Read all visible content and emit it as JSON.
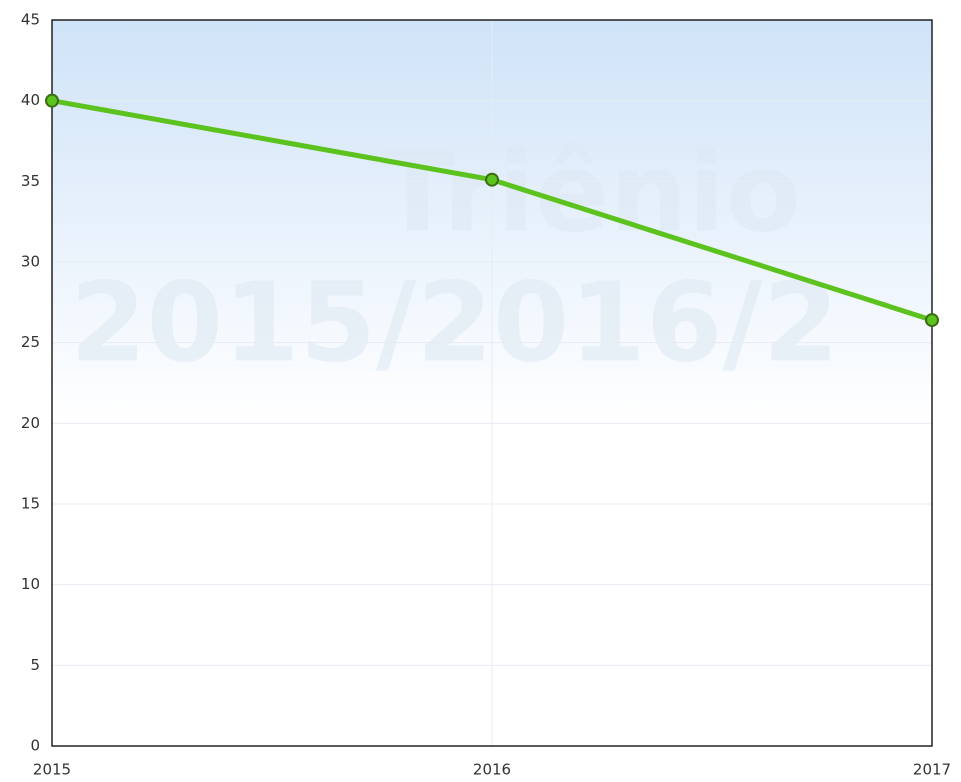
{
  "chart_data": {
    "type": "line",
    "categories": [
      "2015",
      "2016",
      "2017"
    ],
    "series": [
      {
        "name": null,
        "color": "#5cc21e",
        "values": [
          40,
          35.1,
          26.4
        ]
      }
    ],
    "ylim": [
      0,
      45
    ],
    "yticks": [
      0,
      5,
      10,
      15,
      20,
      25,
      30,
      35,
      40,
      45
    ],
    "grid": true,
    "watermark": [
      "Triênio",
      "2015/2016/2"
    ]
  }
}
